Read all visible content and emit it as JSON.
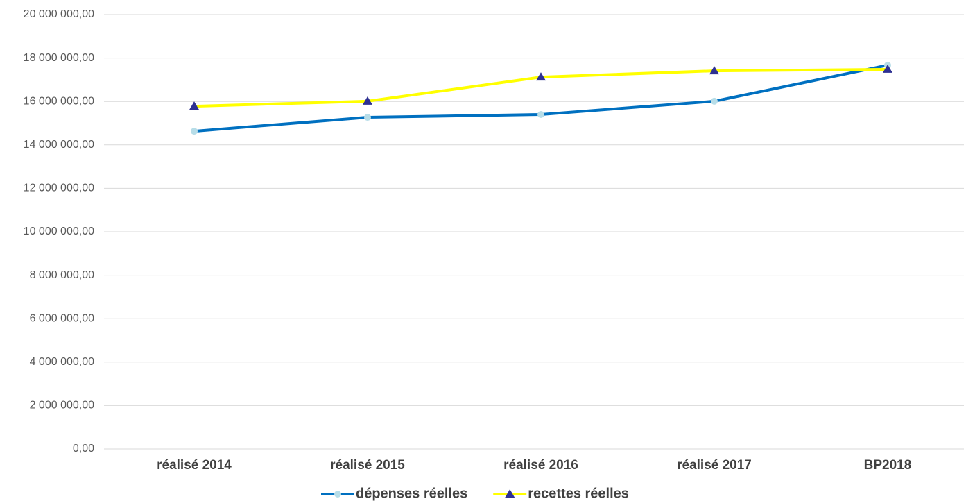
{
  "chart_data": {
    "type": "line",
    "categories": [
      "réalisé 2014",
      "réalisé 2015",
      "réalisé 2016",
      "réalisé 2017",
      "BP2018"
    ],
    "series": [
      {
        "name": "dépenses réelles",
        "color": "#0070c0",
        "marker": "circle",
        "marker_color": "#b7dde8",
        "values": [
          14630000,
          15270000,
          15400000,
          16010000,
          17670000
        ]
      },
      {
        "name": "recettes réelles",
        "color": "#ffff00",
        "marker": "triangle",
        "marker_color": "#2e3192",
        "values": [
          15780000,
          16010000,
          17120000,
          17410000,
          17480000
        ]
      }
    ],
    "ylim": [
      0,
      20000000
    ],
    "yticks": [
      {
        "value": 0,
        "label": "0,00"
      },
      {
        "value": 2000000,
        "label": "2 000 000,00"
      },
      {
        "value": 4000000,
        "label": "4 000 000,00"
      },
      {
        "value": 6000000,
        "label": "6 000 000,00"
      },
      {
        "value": 8000000,
        "label": "8 000 000,00"
      },
      {
        "value": 10000000,
        "label": "10 000 000,00"
      },
      {
        "value": 12000000,
        "label": "12 000 000,00"
      },
      {
        "value": 14000000,
        "label": "14 000 000,00"
      },
      {
        "value": 16000000,
        "label": "16 000 000,00"
      },
      {
        "value": 18000000,
        "label": "18 000 000,00"
      },
      {
        "value": 20000000,
        "label": "20 000 000,00"
      }
    ],
    "grid": true,
    "legend": "bottom"
  }
}
